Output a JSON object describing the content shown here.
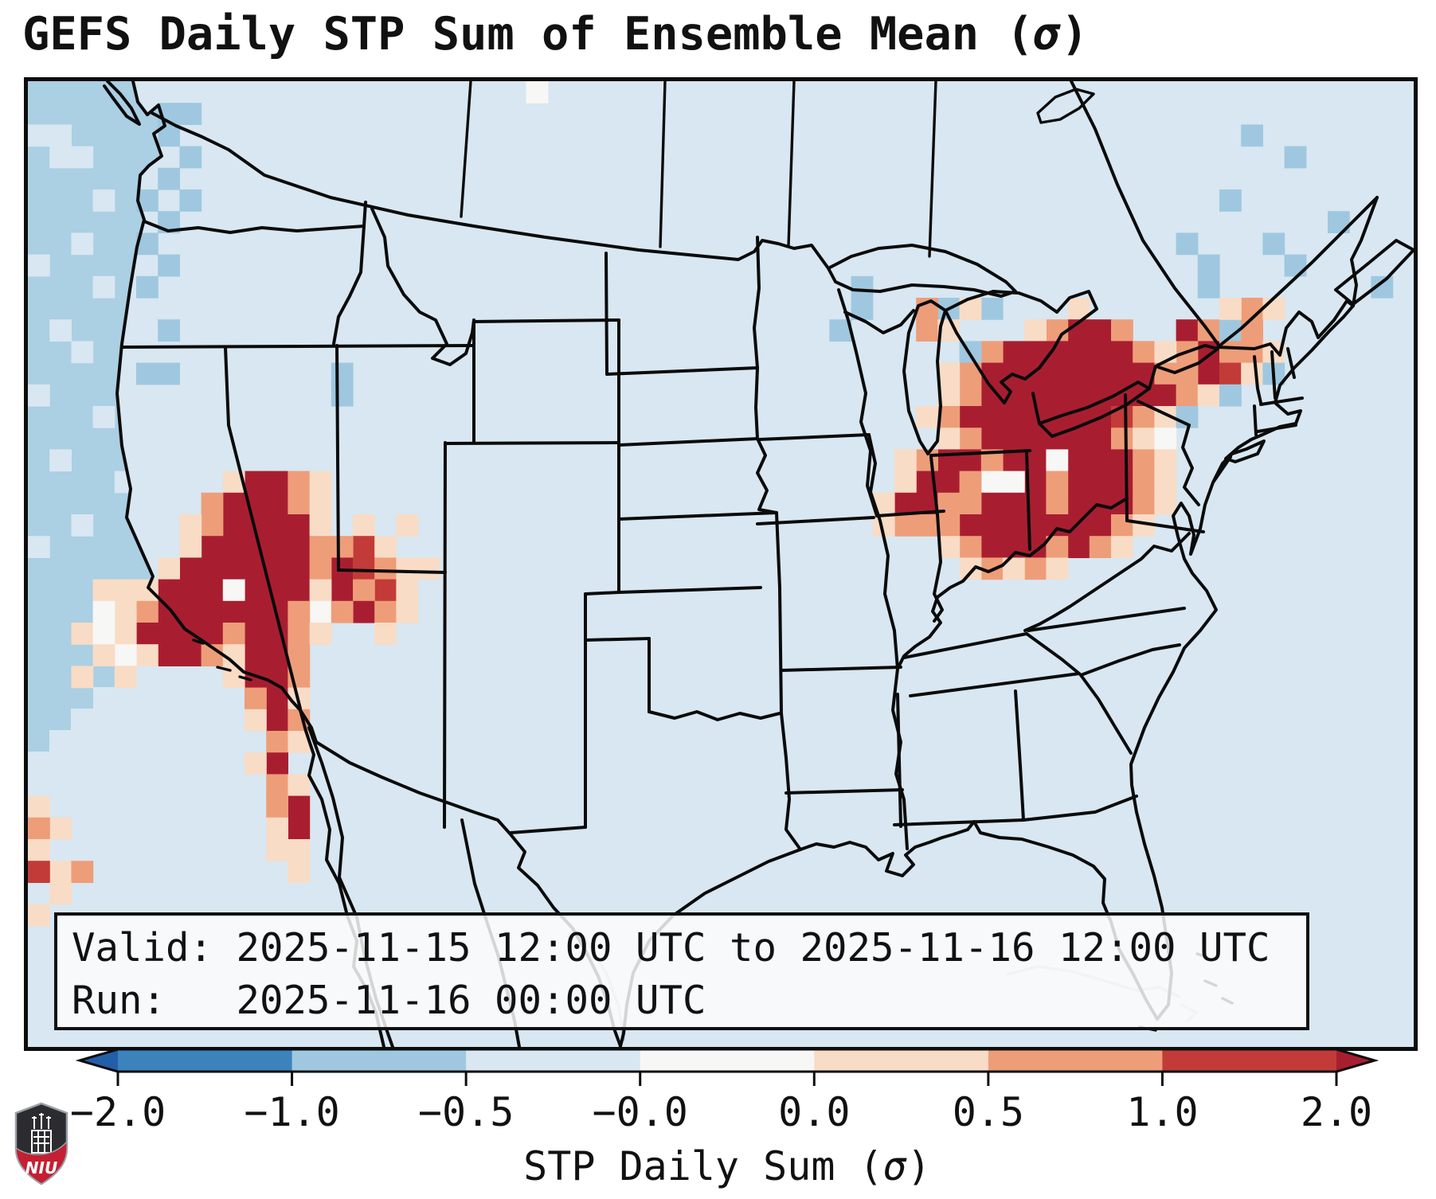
{
  "title": {
    "prefix": "GEFS Daily STP Sum of Ensemble Mean (",
    "sigma": "σ",
    "suffix": ")"
  },
  "info_box": {
    "valid_line": "Valid: 2025-11-15 12:00 UTC to 2025-11-16 12:00 UTC",
    "run_line": "Run:   2025-11-16 00:00 UTC"
  },
  "colorbar": {
    "label": {
      "prefix": "STP Daily Sum (",
      "sigma": "σ",
      "suffix": ")"
    },
    "ticks": [
      "−2.0",
      "−1.0",
      "−0.5",
      "−0.0",
      "0.0",
      "0.5",
      "1.0",
      "2.0"
    ],
    "segments": [
      "#3c83be",
      "#9fc8e0",
      "#d8e7f1",
      "#f7f7f5",
      "#f8dcc6",
      "#ee9d79",
      "#c23b38"
    ],
    "under_color": "#235fa8",
    "over_color": "#a81e30",
    "outline_color": "#0d0d0d"
  },
  "map": {
    "base_color": "#d8e7f1",
    "ocean_color": "#abcfe3",
    "border_color": "#0b0b0b",
    "cell_size": 27.2,
    "bins": {
      "b0": "#d8e7f1",
      "b1": "#9fc8e0",
      "w": "#f7f7f5",
      "p": "#f8dcc6",
      "s": "#ee9d79",
      "r": "#c23b38",
      "R": "#a81e30"
    },
    "cells": [
      "0,2,b0",
      "1,2,b0",
      "1,3,b0",
      "2,3,b0",
      "3,5,b0",
      "2,7,b0",
      "0,8,b0",
      "3,9,b0",
      "1,11,b0",
      "2,12,b0",
      "0,14,b0",
      "3,15,b0",
      "1,17,b0",
      "4,18,b0",
      "2,20,b0",
      "0,21,b0",
      "6,1,b1",
      "7,1,b1",
      "6,2,b1",
      "7,3,b1",
      "6,4,b1",
      "5,5,b1",
      "7,5,b1",
      "6,6,b1",
      "5,7,b1",
      "6,8,b1",
      "5,9,b1",
      "6,11,b1",
      "5,13,b1",
      "6,13,b1",
      "14,13,b1",
      "14,14,b1",
      "23,0,w",
      "10,18,R",
      "11,18,R",
      "12,18,s",
      "9,18,p",
      "13,18,p",
      "9,19,R",
      "10,19,R",
      "11,19,R",
      "8,19,s",
      "12,19,s",
      "13,19,p",
      "9,20,R",
      "10,20,R",
      "11,20,R",
      "12,20,R",
      "8,20,s",
      "7,20,p",
      "13,20,p",
      "15,20,p",
      "8,21,R",
      "9,21,R",
      "10,21,R",
      "11,21,R",
      "12,21,R",
      "15,21,r",
      "13,21,s",
      "14,21,s",
      "7,21,p",
      "16,21,p",
      "17,20,p",
      "7,22,R",
      "8,22,R",
      "9,22,R",
      "10,22,R",
      "11,22,R",
      "12,22,R",
      "14,22,R",
      "15,22,r",
      "13,22,s",
      "16,22,s",
      "6,22,p",
      "17,22,p",
      "18,22,p",
      "6,23,R",
      "7,23,R",
      "8,23,R",
      "10,23,R",
      "11,23,R",
      "12,23,R",
      "14,23,R",
      "16,23,r",
      "9,23,w",
      "15,23,s",
      "5,23,p",
      "13,23,p",
      "17,23,p",
      "6,24,R",
      "7,24,R",
      "8,24,R",
      "9,24,R",
      "10,24,R",
      "11,24,R",
      "15,24,R",
      "13,24,w",
      "5,24,s",
      "12,24,s",
      "14,24,s",
      "16,24,s",
      "4,24,p",
      "17,24,p",
      "5,25,R",
      "6,25,R",
      "7,25,R",
      "8,25,R",
      "10,25,R",
      "11,25,R",
      "9,25,s",
      "12,25,s",
      "4,25,p",
      "13,25,p",
      "16,25,p",
      "6,26,R",
      "7,26,R",
      "10,26,R",
      "11,26,R",
      "8,26,s",
      "12,26,s",
      "5,26,p",
      "9,26,p",
      "10,27,R",
      "11,27,R",
      "12,27,s",
      "9,27,p",
      "11,28,R",
      "10,28,s",
      "12,28,p",
      "11,29,R",
      "10,29,p",
      "12,29,s",
      "11,30,s",
      "12,30,p",
      "11,31,R",
      "10,31,p",
      "11,32,s",
      "12,32,p",
      "12,33,R",
      "11,33,s",
      "12,34,R",
      "11,34,p",
      "11,35,p",
      "12,35,p",
      "12,36,p",
      "3,23,p",
      "4,23,p",
      "3,24,w",
      "2,25,p",
      "3,25,w",
      "4,26,w",
      "3,26,p",
      "4,27,p",
      "2,27,p",
      "0,33,p",
      "1,34,p",
      "0,34,s",
      "0,35,p",
      "1,36,p",
      "0,36,r",
      "2,36,s",
      "1,37,p",
      "0,38,p",
      "42,10,b1",
      "44,10,b1",
      "41,10,s",
      "43,10,p",
      "48,10,p",
      "48,11,R",
      "49,11,R",
      "53,11,R",
      "47,11,s",
      "50,11,s",
      "54,11,s",
      "41,11,s",
      "42,11,p",
      "46,11,p",
      "55,11,b1",
      "56,11,s",
      "45,12,R",
      "46,12,R",
      "47,12,R",
      "48,12,R",
      "49,12,R",
      "50,12,R",
      "54,12,R",
      "44,12,s",
      "51,12,s",
      "53,12,s",
      "55,12,s",
      "56,12,s",
      "52,12,p",
      "43,12,b1",
      "57,12,p",
      "44,13,R",
      "45,13,R",
      "46,13,R",
      "47,13,R",
      "48,13,R",
      "49,13,R",
      "50,13,R",
      "51,13,R",
      "54,13,R",
      "55,13,r",
      "43,13,s",
      "52,13,s",
      "53,13,s",
      "42,13,p",
      "56,13,p",
      "57,13,b1",
      "44,14,R",
      "45,14,R",
      "46,14,R",
      "47,14,R",
      "48,14,R",
      "49,14,R",
      "50,14,R",
      "51,14,R",
      "52,14,R",
      "43,14,s",
      "53,14,s",
      "42,14,p",
      "54,14,p",
      "55,14,b1",
      "43,15,R",
      "44,15,R",
      "45,15,R",
      "46,15,R",
      "47,15,R",
      "48,15,R",
      "49,15,R",
      "50,15,r",
      "42,15,s",
      "51,15,s",
      "41,15,p",
      "52,15,p",
      "53,15,b1",
      "44,16,R",
      "45,16,R",
      "46,16,R",
      "47,16,R",
      "48,16,R",
      "49,16,R",
      "43,16,s",
      "50,16,s",
      "42,16,p",
      "51,16,p",
      "52,16,w",
      "42,17,R",
      "43,17,R",
      "45,17,R",
      "46,17,R",
      "48,17,R",
      "49,17,R",
      "50,17,R",
      "44,17,s",
      "47,17,w",
      "41,17,s",
      "51,17,s",
      "40,17,p",
      "52,17,p",
      "41,18,R",
      "42,18,R",
      "46,18,R",
      "48,18,R",
      "49,18,R",
      "50,18,R",
      "44,18,w",
      "45,18,w",
      "43,18,s",
      "47,18,s",
      "51,18,s",
      "40,18,p",
      "52,18,p",
      "40,19,R",
      "41,19,R",
      "44,19,R",
      "45,19,R",
      "46,19,R",
      "48,19,R",
      "49,19,R",
      "50,19,R",
      "42,19,s",
      "43,19,s",
      "47,19,s",
      "51,19,s",
      "39,19,p",
      "52,19,p",
      "43,20,R",
      "44,20,R",
      "45,20,R",
      "46,20,R",
      "47,20,R",
      "48,20,R",
      "49,20,R",
      "40,20,s",
      "41,20,s",
      "42,20,s",
      "50,20,s",
      "39,20,p",
      "51,20,p",
      "44,21,R",
      "45,21,R",
      "46,21,R",
      "48,21,R",
      "43,21,s",
      "47,21,s",
      "49,21,s",
      "42,21,p",
      "50,21,p",
      "44,22,s",
      "46,22,s",
      "43,22,p",
      "45,22,p",
      "47,22,p",
      "56,10,s",
      "57,10,p",
      "55,10,p",
      "53,7,b1",
      "54,8,b1",
      "54,9,b1",
      "57,7,b1",
      "58,8,b1",
      "62,9,b1",
      "55,5,b1",
      "58,3,b1",
      "60,6,b1",
      "56,2,b1",
      "38,9,b1",
      "38,10,b1",
      "37,11,b1"
    ]
  },
  "logo": {
    "text": "NIU",
    "shield_color": "#2c2c30",
    "band_color": "#c41f33",
    "trim_color": "#9ba1a7"
  }
}
